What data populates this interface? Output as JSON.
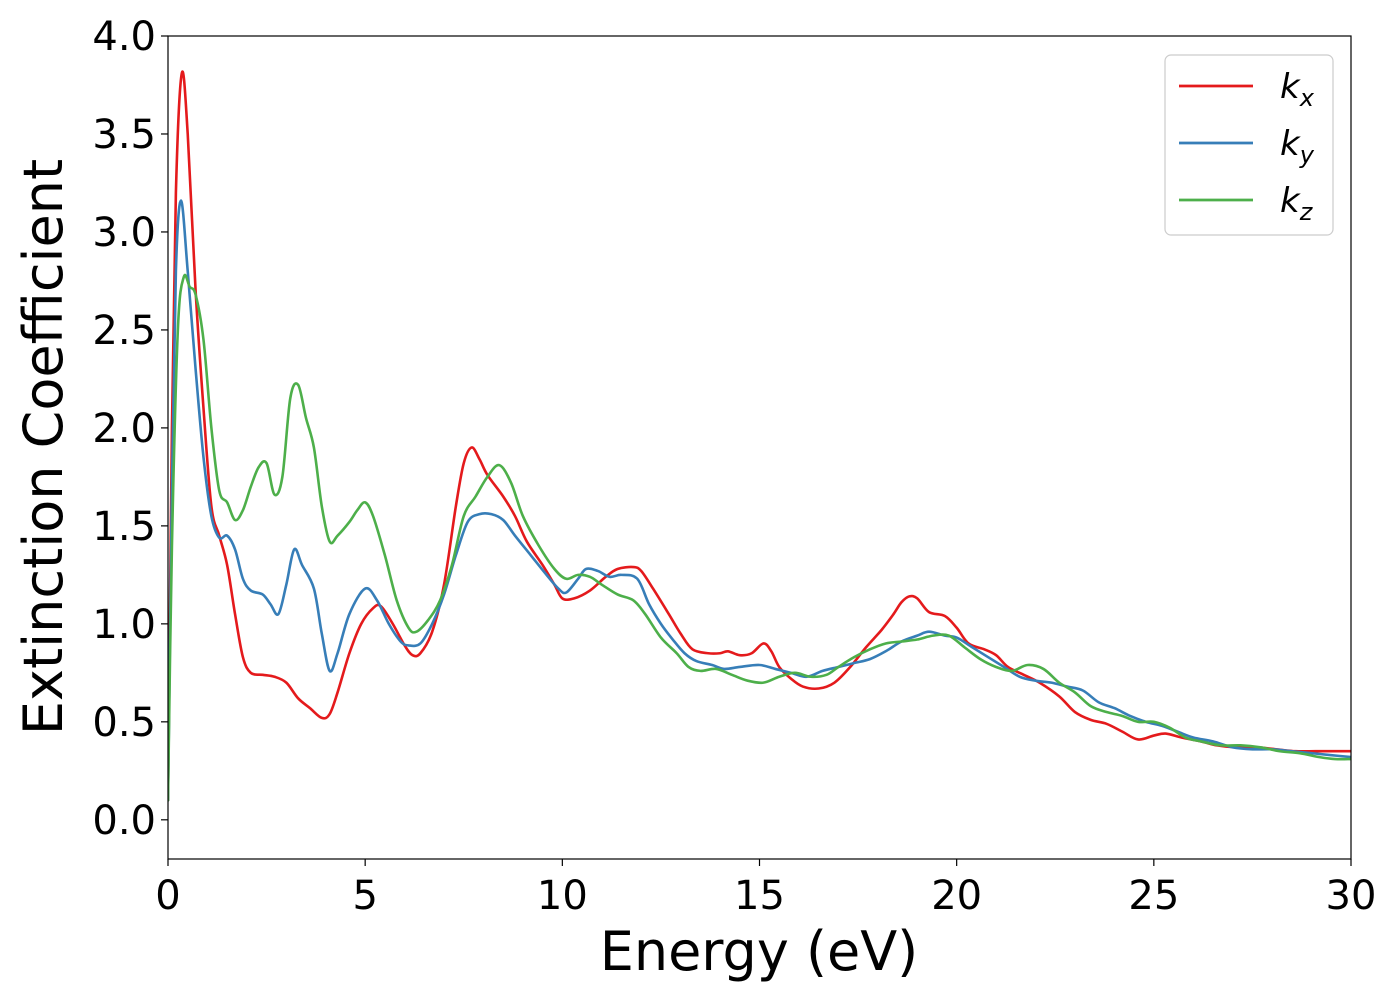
{
  "chart_data": {
    "type": "line",
    "title": "",
    "xlabel": "Energy (eV)",
    "ylabel": "Extinction Coefficient",
    "xlim": [
      0,
      30
    ],
    "ylim": [
      -0.2,
      4.0
    ],
    "x_ticks": [
      0,
      5,
      10,
      15,
      20,
      25,
      30
    ],
    "y_ticks": [
      0.0,
      0.5,
      1.0,
      1.5,
      2.0,
      2.5,
      3.0,
      3.5,
      4.0
    ],
    "x_tick_labels": [
      "0",
      "5",
      "10",
      "15",
      "20",
      "25",
      "30"
    ],
    "y_tick_labels": [
      "0.0",
      "0.5",
      "1.0",
      "1.5",
      "2.0",
      "2.5",
      "3.0",
      "3.5",
      "4.0"
    ],
    "grid": false,
    "legend_position": "top-right",
    "series": [
      {
        "name": "k_x",
        "legend_base": "k",
        "legend_sub": "x",
        "color": "#e41a1c",
        "points": [
          [
            0,
            0.1
          ],
          [
            0.1,
            2.0
          ],
          [
            0.2,
            3.2
          ],
          [
            0.35,
            3.81
          ],
          [
            0.5,
            3.5
          ],
          [
            0.7,
            2.7
          ],
          [
            0.9,
            2.1
          ],
          [
            1.1,
            1.6
          ],
          [
            1.3,
            1.45
          ],
          [
            1.5,
            1.3
          ],
          [
            1.7,
            1.05
          ],
          [
            1.9,
            0.83
          ],
          [
            2.1,
            0.75
          ],
          [
            2.4,
            0.74
          ],
          [
            2.7,
            0.73
          ],
          [
            3.0,
            0.7
          ],
          [
            3.3,
            0.62
          ],
          [
            3.6,
            0.57
          ],
          [
            3.9,
            0.52
          ],
          [
            4.1,
            0.54
          ],
          [
            4.3,
            0.65
          ],
          [
            4.6,
            0.85
          ],
          [
            4.9,
            1.0
          ],
          [
            5.2,
            1.08
          ],
          [
            5.4,
            1.09
          ],
          [
            5.7,
            1.0
          ],
          [
            6.0,
            0.89
          ],
          [
            6.2,
            0.84
          ],
          [
            6.4,
            0.85
          ],
          [
            6.7,
            0.96
          ],
          [
            7.0,
            1.2
          ],
          [
            7.3,
            1.6
          ],
          [
            7.5,
            1.82
          ],
          [
            7.7,
            1.9
          ],
          [
            7.9,
            1.84
          ],
          [
            8.1,
            1.76
          ],
          [
            8.5,
            1.65
          ],
          [
            8.8,
            1.55
          ],
          [
            9.1,
            1.42
          ],
          [
            9.5,
            1.3
          ],
          [
            9.8,
            1.2
          ],
          [
            10.0,
            1.13
          ],
          [
            10.3,
            1.13
          ],
          [
            10.7,
            1.17
          ],
          [
            11.1,
            1.24
          ],
          [
            11.4,
            1.28
          ],
          [
            11.8,
            1.29
          ],
          [
            12.0,
            1.27
          ],
          [
            12.3,
            1.18
          ],
          [
            12.7,
            1.05
          ],
          [
            13.0,
            0.95
          ],
          [
            13.3,
            0.87
          ],
          [
            13.7,
            0.85
          ],
          [
            14.0,
            0.85
          ],
          [
            14.2,
            0.86
          ],
          [
            14.5,
            0.84
          ],
          [
            14.8,
            0.85
          ],
          [
            15.1,
            0.9
          ],
          [
            15.3,
            0.86
          ],
          [
            15.5,
            0.78
          ],
          [
            15.8,
            0.72
          ],
          [
            16.1,
            0.68
          ],
          [
            16.5,
            0.67
          ],
          [
            16.9,
            0.7
          ],
          [
            17.3,
            0.78
          ],
          [
            17.7,
            0.88
          ],
          [
            18.1,
            0.97
          ],
          [
            18.4,
            1.05
          ],
          [
            18.6,
            1.11
          ],
          [
            18.8,
            1.14
          ],
          [
            19.0,
            1.13
          ],
          [
            19.3,
            1.06
          ],
          [
            19.7,
            1.04
          ],
          [
            20.0,
            0.98
          ],
          [
            20.3,
            0.9
          ],
          [
            20.7,
            0.87
          ],
          [
            21.0,
            0.84
          ],
          [
            21.3,
            0.78
          ],
          [
            21.7,
            0.74
          ],
          [
            22.1,
            0.7
          ],
          [
            22.6,
            0.63
          ],
          [
            23.0,
            0.55
          ],
          [
            23.4,
            0.51
          ],
          [
            23.8,
            0.49
          ],
          [
            24.2,
            0.45
          ],
          [
            24.6,
            0.41
          ],
          [
            25.0,
            0.43
          ],
          [
            25.3,
            0.44
          ],
          [
            25.7,
            0.42
          ],
          [
            26.2,
            0.4
          ],
          [
            26.6,
            0.38
          ],
          [
            27.1,
            0.37
          ],
          [
            27.6,
            0.37
          ],
          [
            28.1,
            0.36
          ],
          [
            28.6,
            0.35
          ],
          [
            29.1,
            0.35
          ],
          [
            29.6,
            0.35
          ],
          [
            30,
            0.35
          ]
        ]
      },
      {
        "name": "k_y",
        "legend_base": "k",
        "legend_sub": "y",
        "color": "#377eb8",
        "points": [
          [
            0,
            0.1
          ],
          [
            0.1,
            1.7
          ],
          [
            0.2,
            2.8
          ],
          [
            0.33,
            3.16
          ],
          [
            0.5,
            2.8
          ],
          [
            0.7,
            2.3
          ],
          [
            0.9,
            1.85
          ],
          [
            1.1,
            1.55
          ],
          [
            1.3,
            1.44
          ],
          [
            1.5,
            1.45
          ],
          [
            1.7,
            1.38
          ],
          [
            1.9,
            1.23
          ],
          [
            2.1,
            1.17
          ],
          [
            2.4,
            1.15
          ],
          [
            2.6,
            1.1
          ],
          [
            2.8,
            1.05
          ],
          [
            3.0,
            1.2
          ],
          [
            3.2,
            1.38
          ],
          [
            3.4,
            1.3
          ],
          [
            3.7,
            1.18
          ],
          [
            3.9,
            0.95
          ],
          [
            4.1,
            0.76
          ],
          [
            4.3,
            0.85
          ],
          [
            4.6,
            1.05
          ],
          [
            5.0,
            1.18
          ],
          [
            5.3,
            1.12
          ],
          [
            5.6,
            1.0
          ],
          [
            5.9,
            0.91
          ],
          [
            6.1,
            0.89
          ],
          [
            6.4,
            0.9
          ],
          [
            6.7,
            1.0
          ],
          [
            7.0,
            1.15
          ],
          [
            7.3,
            1.35
          ],
          [
            7.6,
            1.52
          ],
          [
            7.9,
            1.56
          ],
          [
            8.2,
            1.56
          ],
          [
            8.5,
            1.53
          ],
          [
            8.8,
            1.45
          ],
          [
            9.2,
            1.35
          ],
          [
            9.6,
            1.25
          ],
          [
            9.9,
            1.18
          ],
          [
            10.1,
            1.16
          ],
          [
            10.4,
            1.23
          ],
          [
            10.6,
            1.28
          ],
          [
            10.9,
            1.27
          ],
          [
            11.2,
            1.24
          ],
          [
            11.5,
            1.25
          ],
          [
            11.9,
            1.23
          ],
          [
            12.2,
            1.1
          ],
          [
            12.5,
            1.0
          ],
          [
            12.8,
            0.92
          ],
          [
            13.1,
            0.85
          ],
          [
            13.4,
            0.81
          ],
          [
            13.8,
            0.79
          ],
          [
            14.1,
            0.77
          ],
          [
            14.5,
            0.78
          ],
          [
            15.0,
            0.79
          ],
          [
            15.4,
            0.77
          ],
          [
            15.8,
            0.75
          ],
          [
            16.2,
            0.73
          ],
          [
            16.6,
            0.76
          ],
          [
            17.0,
            0.78
          ],
          [
            17.4,
            0.8
          ],
          [
            17.8,
            0.82
          ],
          [
            18.2,
            0.86
          ],
          [
            18.6,
            0.91
          ],
          [
            19.0,
            0.94
          ],
          [
            19.3,
            0.96
          ],
          [
            19.7,
            0.94
          ],
          [
            20.0,
            0.93
          ],
          [
            20.4,
            0.88
          ],
          [
            20.8,
            0.83
          ],
          [
            21.2,
            0.78
          ],
          [
            21.6,
            0.73
          ],
          [
            22.0,
            0.71
          ],
          [
            22.4,
            0.7
          ],
          [
            22.8,
            0.68
          ],
          [
            23.2,
            0.66
          ],
          [
            23.6,
            0.6
          ],
          [
            24.0,
            0.57
          ],
          [
            24.4,
            0.53
          ],
          [
            24.8,
            0.5
          ],
          [
            25.2,
            0.48
          ],
          [
            25.6,
            0.45
          ],
          [
            26.0,
            0.42
          ],
          [
            26.5,
            0.4
          ],
          [
            27.0,
            0.37
          ],
          [
            27.5,
            0.36
          ],
          [
            28.0,
            0.36
          ],
          [
            28.5,
            0.35
          ],
          [
            29.0,
            0.34
          ],
          [
            29.5,
            0.33
          ],
          [
            30,
            0.32
          ]
        ]
      },
      {
        "name": "k_z",
        "legend_base": "k",
        "legend_sub": "z",
        "color": "#4daf4a",
        "points": [
          [
            0,
            0.1
          ],
          [
            0.1,
            1.4
          ],
          [
            0.25,
            2.5
          ],
          [
            0.4,
            2.77
          ],
          [
            0.55,
            2.72
          ],
          [
            0.7,
            2.68
          ],
          [
            0.9,
            2.45
          ],
          [
            1.1,
            2.0
          ],
          [
            1.3,
            1.68
          ],
          [
            1.5,
            1.62
          ],
          [
            1.7,
            1.53
          ],
          [
            1.9,
            1.58
          ],
          [
            2.1,
            1.7
          ],
          [
            2.3,
            1.8
          ],
          [
            2.5,
            1.82
          ],
          [
            2.7,
            1.66
          ],
          [
            2.9,
            1.75
          ],
          [
            3.1,
            2.15
          ],
          [
            3.3,
            2.22
          ],
          [
            3.5,
            2.05
          ],
          [
            3.7,
            1.9
          ],
          [
            3.9,
            1.6
          ],
          [
            4.1,
            1.42
          ],
          [
            4.3,
            1.45
          ],
          [
            4.6,
            1.52
          ],
          [
            4.8,
            1.58
          ],
          [
            5.0,
            1.62
          ],
          [
            5.2,
            1.55
          ],
          [
            5.5,
            1.35
          ],
          [
            5.8,
            1.12
          ],
          [
            6.1,
            0.98
          ],
          [
            6.3,
            0.96
          ],
          [
            6.6,
            1.02
          ],
          [
            6.9,
            1.12
          ],
          [
            7.2,
            1.3
          ],
          [
            7.5,
            1.55
          ],
          [
            7.8,
            1.65
          ],
          [
            8.1,
            1.75
          ],
          [
            8.4,
            1.81
          ],
          [
            8.7,
            1.72
          ],
          [
            9.0,
            1.55
          ],
          [
            9.4,
            1.4
          ],
          [
            9.8,
            1.28
          ],
          [
            10.1,
            1.23
          ],
          [
            10.4,
            1.25
          ],
          [
            10.7,
            1.24
          ],
          [
            11.0,
            1.2
          ],
          [
            11.4,
            1.15
          ],
          [
            11.8,
            1.12
          ],
          [
            12.1,
            1.05
          ],
          [
            12.5,
            0.93
          ],
          [
            12.9,
            0.85
          ],
          [
            13.2,
            0.78
          ],
          [
            13.5,
            0.76
          ],
          [
            13.9,
            0.77
          ],
          [
            14.3,
            0.74
          ],
          [
            14.7,
            0.71
          ],
          [
            15.1,
            0.7
          ],
          [
            15.5,
            0.73
          ],
          [
            15.9,
            0.75
          ],
          [
            16.3,
            0.73
          ],
          [
            16.7,
            0.74
          ],
          [
            17.0,
            0.78
          ],
          [
            17.4,
            0.83
          ],
          [
            17.8,
            0.87
          ],
          [
            18.2,
            0.9
          ],
          [
            18.6,
            0.91
          ],
          [
            19.0,
            0.92
          ],
          [
            19.4,
            0.94
          ],
          [
            19.8,
            0.94
          ],
          [
            20.2,
            0.88
          ],
          [
            20.6,
            0.82
          ],
          [
            21.0,
            0.78
          ],
          [
            21.4,
            0.76
          ],
          [
            21.8,
            0.79
          ],
          [
            22.2,
            0.77
          ],
          [
            22.6,
            0.7
          ],
          [
            23.0,
            0.65
          ],
          [
            23.4,
            0.58
          ],
          [
            23.8,
            0.55
          ],
          [
            24.2,
            0.53
          ],
          [
            24.6,
            0.5
          ],
          [
            25.0,
            0.5
          ],
          [
            25.4,
            0.47
          ],
          [
            25.8,
            0.42
          ],
          [
            26.2,
            0.4
          ],
          [
            26.7,
            0.38
          ],
          [
            27.2,
            0.38
          ],
          [
            27.7,
            0.37
          ],
          [
            28.2,
            0.35
          ],
          [
            28.7,
            0.34
          ],
          [
            29.2,
            0.32
          ],
          [
            29.6,
            0.31
          ],
          [
            30,
            0.31
          ]
        ]
      }
    ]
  }
}
